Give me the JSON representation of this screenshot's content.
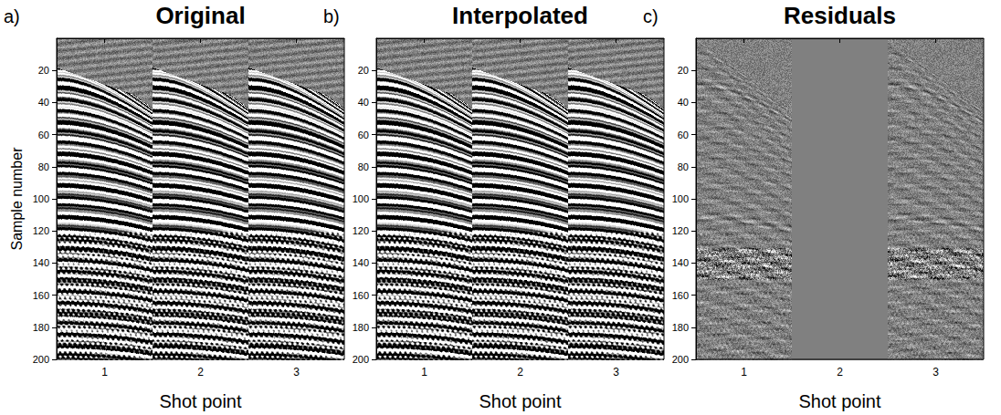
{
  "chart_data": [
    {
      "type": "seismic",
      "title": "Original",
      "annotation": "a)",
      "x_label": "Shot point",
      "y_label": "Sample number",
      "categories": [
        "1",
        "2",
        "3"
      ],
      "ylim": [
        0,
        200
      ],
      "yticks": [
        20,
        40,
        60,
        80,
        100,
        120,
        140,
        160,
        180,
        200
      ]
    },
    {
      "type": "seismic",
      "title": "Interpolated",
      "annotation": "b)",
      "x_label": "Shot point",
      "categories": [
        "1",
        "2",
        "3"
      ],
      "ylim": [
        0,
        200
      ],
      "yticks": [
        20,
        40,
        60,
        80,
        100,
        120,
        140,
        160,
        180,
        200
      ]
    },
    {
      "type": "residual",
      "title": "Residuals",
      "annotation": "c)",
      "x_label": "Shot point",
      "categories": [
        "1",
        "2",
        "3"
      ],
      "ylim": [
        0,
        200
      ],
      "yticks": [
        20,
        40,
        60,
        80,
        100,
        120,
        140,
        160,
        180,
        200
      ]
    }
  ]
}
